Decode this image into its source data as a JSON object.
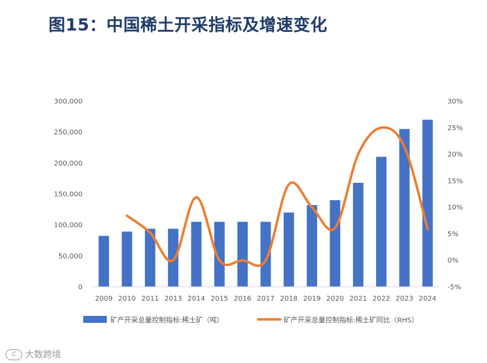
{
  "header": {
    "title": "图15：中国稀土开采指标及增速变化"
  },
  "watermark": {
    "text": "大数跨境",
    "logo": "C"
  },
  "chart_data": {
    "type": "bar",
    "title": "图15：中国稀土开采指标及增速变化",
    "categories": [
      "2009",
      "2010",
      "2011",
      "2013",
      "2014",
      "2015",
      "2016",
      "2017",
      "2018",
      "2019",
      "2020",
      "2021",
      "2022",
      "2023",
      "2024"
    ],
    "series": [
      {
        "name": "矿产开采总量控制指标:稀土矿（吨）",
        "type": "bar",
        "axis": "left",
        "color": "#4472c4",
        "values": [
          82320,
          89200,
          93800,
          93800,
          105000,
          105000,
          105000,
          105000,
          120000,
          132000,
          140000,
          168000,
          210000,
          255000,
          270000
        ]
      },
      {
        "name": "矿产开采总量控制指标:稀土矿同比（RHS）",
        "type": "line",
        "axis": "right",
        "color": "#ed7d31",
        "values": [
          null,
          8.4,
          5.2,
          0.0,
          11.9,
          0.0,
          0.0,
          0.0,
          14.3,
          10.0,
          6.1,
          20.0,
          25.0,
          21.4,
          5.9
        ]
      }
    ],
    "y_left": {
      "min": 0,
      "max": 300000,
      "ticks": [
        "0",
        "50,000",
        "100,000",
        "150,000",
        "200,000",
        "250,000",
        "300,000"
      ]
    },
    "y_right": {
      "min": -5,
      "max": 30,
      "ticks": [
        "-5%",
        "0%",
        "5%",
        "10%",
        "15%",
        "20%",
        "25%",
        "30%"
      ]
    },
    "legend_position": "bottom",
    "grid": false
  }
}
